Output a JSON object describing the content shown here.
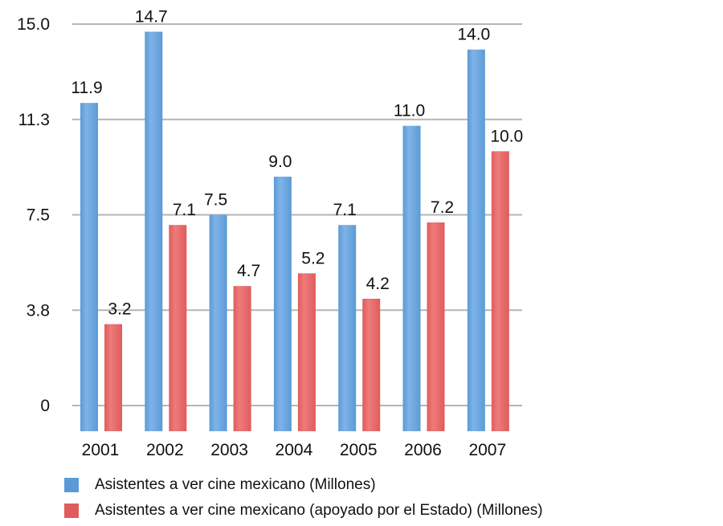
{
  "chart_data": {
    "type": "bar",
    "categories": [
      "2001",
      "2002",
      "2003",
      "2004",
      "2005",
      "2006",
      "2007"
    ],
    "series": [
      {
        "name": "Asistentes a ver cine mexicano (Millones)",
        "values": [
          11.9,
          14.7,
          7.5,
          9.0,
          7.1,
          11.0,
          14.0
        ],
        "labels": [
          "11.9",
          "14.7",
          "7.5",
          "9.0",
          "7.1",
          "11.0",
          "14.0"
        ],
        "color": "#5b9bd5"
      },
      {
        "name": "Asistentes a ver cine mexicano (apoyado por el Estado) (Millones)",
        "values": [
          3.2,
          7.1,
          4.7,
          5.2,
          4.2,
          7.2,
          10.0
        ],
        "labels": [
          "3.2",
          "7.1",
          "4.7",
          "5.2",
          "4.2",
          "7.2",
          "10.0"
        ],
        "color": "#e05c5c"
      }
    ],
    "yticks": [
      0,
      3.75,
      7.5,
      11.25,
      15
    ],
    "ytick_labels": [
      "0",
      "3.8",
      "7.5",
      "11.3",
      "15.0"
    ],
    "ylim": [
      0,
      15
    ],
    "grid": true,
    "legend_position": "bottom"
  }
}
